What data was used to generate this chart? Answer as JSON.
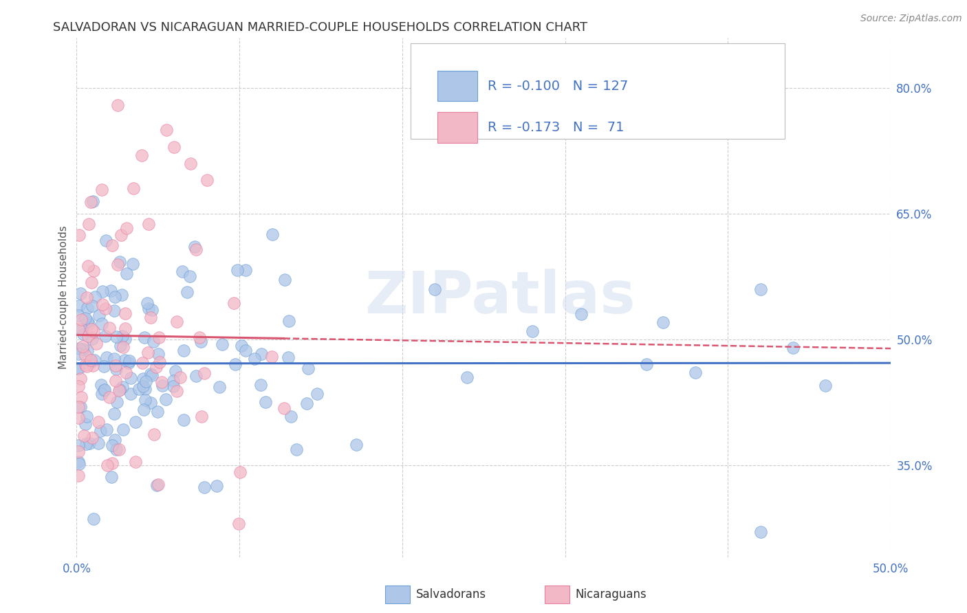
{
  "title": "SALVADORAN VS NICARAGUAN MARRIED-COUPLE HOUSEHOLDS CORRELATION CHART",
  "source": "Source: ZipAtlas.com",
  "xlabel_salvadoran": "Salvadorans",
  "xlabel_nicaraguan": "Nicaraguans",
  "ylabel": "Married-couple Households",
  "xlim": [
    0.0,
    0.5
  ],
  "ylim": [
    0.24,
    0.86
  ],
  "xtick_labels": [
    "0.0%",
    "",
    "",
    "",
    "",
    "50.0%"
  ],
  "xtick_values": [
    0.0,
    0.1,
    0.2,
    0.3,
    0.4,
    0.5
  ],
  "ytick_labels": [
    "35.0%",
    "50.0%",
    "65.0%",
    "80.0%"
  ],
  "ytick_values": [
    0.35,
    0.5,
    0.65,
    0.8
  ],
  "R_salvadoran": -0.1,
  "N_salvadoran": 127,
  "R_nicaraguan": -0.173,
  "N_nicaraguan": 71,
  "blue_color": "#aec6e8",
  "pink_color": "#f2b8c6",
  "blue_edge_color": "#6a9fd8",
  "pink_edge_color": "#e87da0",
  "blue_line_color": "#4472c4",
  "pink_line_color": "#d9546e",
  "legend_text_color": "#4472c4",
  "tick_color": "#4472c4",
  "background_color": "#ffffff",
  "watermark": "ZIPatlas",
  "title_fontsize": 13,
  "axis_label_fontsize": 11,
  "tick_fontsize": 12,
  "source_fontsize": 10
}
